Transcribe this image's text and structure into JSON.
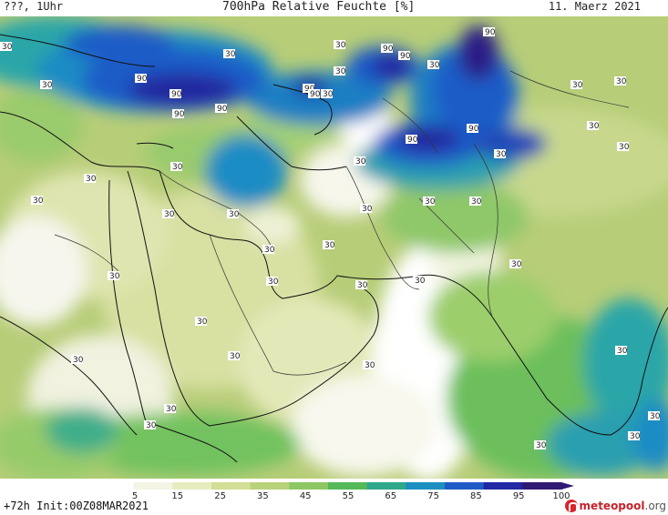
{
  "header": {
    "run_label": "???, 1Uhr",
    "title": "700hPa Relative Feuchte [%]",
    "valid_date": "11. Maerz 2021"
  },
  "footer": {
    "lead_and_init": "+72h Init:00Z08MAR2021",
    "brand_name": "meteopool",
    "brand_tld": ".org",
    "brand_icon": "meteopool-logo-icon"
  },
  "colorbar": {
    "ticks": [
      "5",
      "15",
      "25",
      "35",
      "45",
      "55",
      "65",
      "75",
      "85",
      "95",
      "100"
    ],
    "colors": [
      "#ffffff",
      "#f4f4e4",
      "#e7ecbf",
      "#d2de94",
      "#b8d27a",
      "#8dc763",
      "#56b958",
      "#2fa88c",
      "#1d8fc1",
      "#1f5bc7",
      "#2227a3",
      "#301a73"
    ]
  },
  "contour_labels": [
    "30",
    "90",
    "30",
    "30",
    "90",
    "90",
    "90",
    "30",
    "90",
    "90",
    "90",
    "30",
    "90",
    "90",
    "30",
    "90",
    "90",
    "30",
    "30",
    "30",
    "30",
    "30",
    "30",
    "30",
    "30",
    "30",
    "30",
    "30",
    "30",
    "30",
    "30",
    "30",
    "30",
    "30",
    "30",
    "30",
    "30",
    "30",
    "30",
    "30",
    "30",
    "30",
    "30",
    "30",
    "30",
    "30",
    "30",
    "30",
    "30"
  ]
}
